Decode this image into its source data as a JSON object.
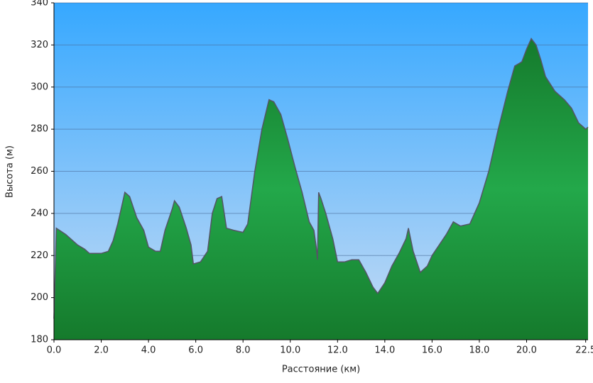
{
  "chart_data": {
    "type": "area",
    "x_label": "Расстояние   (км)",
    "y_label": "Высота (м)",
    "x": [
      0,
      0.1,
      0.5,
      1.0,
      1.3,
      1.5,
      2.0,
      2.3,
      2.5,
      2.7,
      2.9,
      3.0,
      3.2,
      3.5,
      3.8,
      4.0,
      4.3,
      4.5,
      4.7,
      5.0,
      5.1,
      5.3,
      5.6,
      5.8,
      5.9,
      6.2,
      6.5,
      6.7,
      6.9,
      7.1,
      7.3,
      7.6,
      8.0,
      8.2,
      8.5,
      8.8,
      9.1,
      9.3,
      9.6,
      9.9,
      10.2,
      10.5,
      10.8,
      11.0,
      11.1,
      11.15,
      11.2,
      11.3,
      11.5,
      11.8,
      12.0,
      12.3,
      12.6,
      12.9,
      13.2,
      13.5,
      13.7,
      14.0,
      14.3,
      14.6,
      14.9,
      15.0,
      15.2,
      15.5,
      15.8,
      16.0,
      16.3,
      16.6,
      16.9,
      17.2,
      17.6,
      18.0,
      18.4,
      18.8,
      19.2,
      19.5,
      19.8,
      20.0,
      20.2,
      20.4,
      20.6,
      20.8,
      21.2,
      21.6,
      21.9,
      22.2,
      22.5,
      22.6
    ],
    "values": [
      190,
      233,
      230,
      225,
      223,
      221,
      221,
      222,
      227,
      235,
      245,
      250,
      248,
      238,
      232,
      224,
      222,
      222,
      232,
      242,
      246,
      243,
      233,
      225,
      216,
      217,
      222,
      240,
      247,
      248,
      233,
      232,
      231,
      235,
      260,
      280,
      294,
      293,
      287,
      275,
      262,
      250,
      236,
      232,
      224,
      218,
      250,
      247,
      240,
      228,
      217,
      217,
      218,
      218,
      212,
      205,
      202,
      207,
      215,
      221,
      228,
      233,
      222,
      212,
      215,
      220,
      225,
      230,
      236,
      234,
      235,
      245,
      260,
      280,
      298,
      310,
      312,
      318,
      323,
      320,
      313,
      305,
      298,
      294,
      290,
      283,
      280,
      281
    ],
    "xlim": [
      0,
      22.6
    ],
    "ylim": [
      180,
      340
    ],
    "xticks": [
      {
        "value": 0,
        "label": "0.0"
      },
      {
        "value": 2,
        "label": "2.0"
      },
      {
        "value": 4,
        "label": "4.0"
      },
      {
        "value": 6,
        "label": "6.0"
      },
      {
        "value": 8,
        "label": "8.0"
      },
      {
        "value": 10,
        "label": "10.0"
      },
      {
        "value": 12,
        "label": "12.0"
      },
      {
        "value": 14,
        "label": "14.0"
      },
      {
        "value": 16,
        "label": "16.0"
      },
      {
        "value": 18,
        "label": "18.0"
      },
      {
        "value": 20,
        "label": "20.0"
      },
      22.5
    ],
    "yticks": [
      180,
      200,
      220,
      240,
      260,
      280,
      300,
      320,
      340
    ],
    "grid": true,
    "color": "#1f9a3c"
  }
}
